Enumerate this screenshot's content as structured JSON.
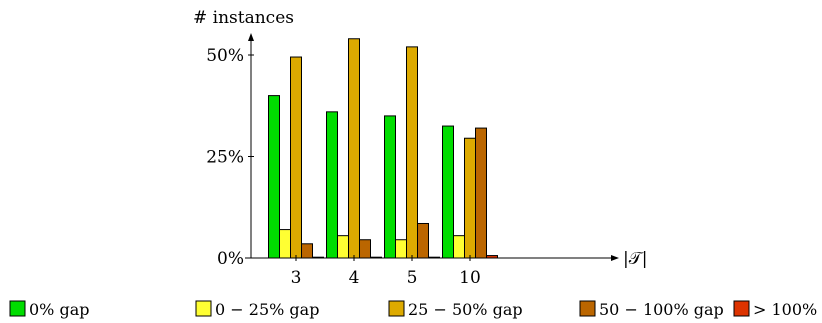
{
  "chart_data": {
    "type": "bar",
    "ylabel": "# instances",
    "xlabel": "|𝒯|",
    "categories": [
      "3",
      "4",
      "5",
      "10"
    ],
    "yticks": [
      {
        "value": 0,
        "label": "0%"
      },
      {
        "value": 25,
        "label": "25%"
      },
      {
        "value": 50,
        "label": "50%"
      }
    ],
    "ylim": [
      0,
      57
    ],
    "grid": false,
    "legend_position": "bottom",
    "series": [
      {
        "name": "0% gap",
        "color": "#00dd00",
        "values": [
          40,
          36,
          35,
          32.5
        ]
      },
      {
        "name": "0 − 25% gap",
        "color": "#ffff33",
        "values": [
          7,
          5.5,
          4.5,
          5.5
        ]
      },
      {
        "name": "25 − 50% gap",
        "color": "#ddaa00",
        "values": [
          49.5,
          54,
          52,
          29.5
        ]
      },
      {
        "name": "50 − 100% gap",
        "color": "#bb6600",
        "values": [
          3.5,
          4.5,
          8.5,
          32
        ]
      },
      {
        "name": "> 100% gap",
        "color": "#dd3300",
        "values": [
          0.2,
          0.2,
          0.2,
          0.6
        ]
      }
    ]
  }
}
